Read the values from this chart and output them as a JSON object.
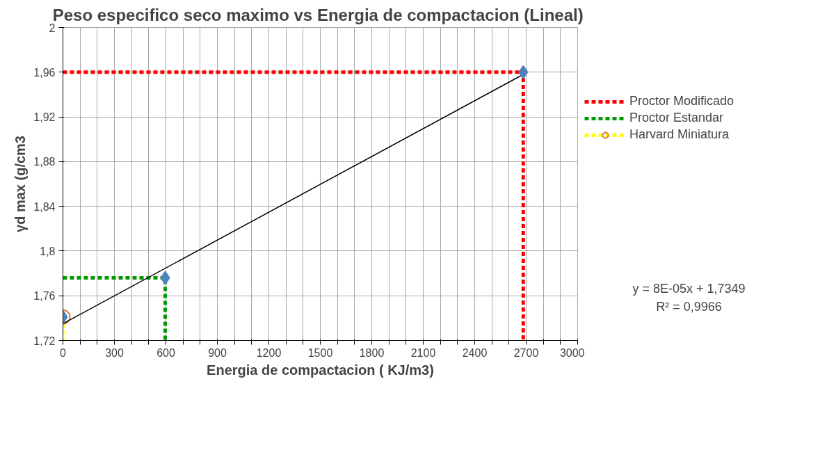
{
  "chart_data": {
    "type": "scatter",
    "title": "Peso especifico seco maximo vs  Energia de compactacion (Lineal)",
    "xlabel": "Energia de compactacion ( KJ/m3)",
    "ylabel": "γd max (g/cm3",
    "xlim": [
      0,
      3000
    ],
    "xticks": [
      0,
      {
        "value": 100,
        "label": null
      },
      {
        "value": 200,
        "label": null
      },
      300,
      {
        "value": 400,
        "label": null
      },
      {
        "value": 500,
        "label": null
      },
      600,
      {
        "value": 700,
        "label": null
      },
      {
        "value": 800,
        "label": null
      },
      900,
      {
        "value": 1000,
        "label": null
      },
      {
        "value": 1100,
        "label": null
      },
      1200,
      {
        "value": 1300,
        "label": null
      },
      {
        "value": 1400,
        "label": null
      },
      1500,
      {
        "value": 1600,
        "label": null
      },
      {
        "value": 1700,
        "label": null
      },
      1800,
      {
        "value": 1900,
        "label": null
      },
      {
        "value": 2000,
        "label": null
      },
      2100,
      {
        "value": 2200,
        "label": null
      },
      {
        "value": 2300,
        "label": null
      },
      2400,
      {
        "value": 2500,
        "label": null
      },
      {
        "value": 2600,
        "label": null
      },
      2700,
      {
        "value": 2800,
        "label": null
      },
      {
        "value": 2900,
        "label": null
      },
      3000
    ],
    "ylim": [
      1.72,
      2
    ],
    "yticks": [
      {
        "value": 1.72,
        "label": "1,72"
      },
      {
        "value": 1.76,
        "label": "1,76"
      },
      {
        "value": 1.8,
        "label": "1,8"
      },
      {
        "value": 1.84,
        "label": "1,84"
      },
      {
        "value": 1.88,
        "label": "1,88"
      },
      {
        "value": 1.92,
        "label": "1,92"
      },
      {
        "value": 1.96,
        "label": "1,96"
      },
      2
    ],
    "grid": true,
    "legend": "right",
    "series": [
      {
        "name": "Proctor Modificado",
        "type": "line",
        "line_style": "dashed",
        "color": "#ff0000",
        "x": [
          0,
          2683,
          2683
        ],
        "values": [
          1.96,
          1.96,
          1.72
        ]
      },
      {
        "name": "Proctor Estandar",
        "type": "line",
        "line_style": "dashed",
        "color": "#009900",
        "x": [
          0,
          596,
          596
        ],
        "values": [
          1.776,
          1.776,
          1.72
        ]
      },
      {
        "name": "Harvard Miniatura",
        "type": "line",
        "line_style": "dashed",
        "color": "#ffff00",
        "x": [
          0,
          0
        ],
        "values": [
          1.741,
          1.72
        ]
      },
      {
        "marker": "circle",
        "color": "#e07b39",
        "x": [
          0
        ],
        "values": [
          1.741
        ]
      },
      {
        "type": "line",
        "line_style": "solid",
        "color": "#000000",
        "x": [
          0,
          2683
        ],
        "values": [
          1.735,
          1.958
        ]
      },
      {
        "type": "scatter",
        "marker": "diamond",
        "color": "#4f81bd",
        "x": [
          0,
          596,
          2683
        ],
        "values": [
          1.741,
          1.776,
          1.96
        ]
      }
    ],
    "annotations": [
      "y = 8E-05x + 1,7349",
      "R² = 0,9966"
    ]
  }
}
